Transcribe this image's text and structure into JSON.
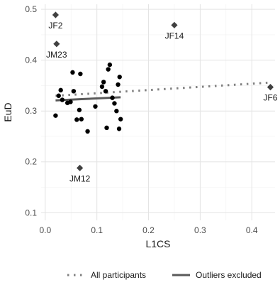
{
  "chart_data": {
    "type": "scatter",
    "xlabel": "L1CS",
    "ylabel": "EuD",
    "xlim": [
      -0.008,
      0.445
    ],
    "ylim": [
      0.085,
      0.51
    ],
    "x_ticks": [
      "0.0",
      "0.1",
      "0.2",
      "0.3",
      "0.4"
    ],
    "x_tick_values": [
      0.0,
      0.1,
      0.2,
      0.3,
      0.4
    ],
    "y_ticks": [
      "0.1",
      "0.2",
      "0.3",
      "0.4",
      "0.5"
    ],
    "y_tick_values": [
      0.1,
      0.2,
      0.3,
      0.4,
      0.5
    ],
    "grid": true,
    "legend_position": "bottom",
    "points": [
      {
        "x": 0.02,
        "y": 0.291
      },
      {
        "x": 0.026,
        "y": 0.33
      },
      {
        "x": 0.03,
        "y": 0.341
      },
      {
        "x": 0.033,
        "y": 0.322
      },
      {
        "x": 0.043,
        "y": 0.316
      },
      {
        "x": 0.049,
        "y": 0.318
      },
      {
        "x": 0.053,
        "y": 0.376
      },
      {
        "x": 0.055,
        "y": 0.339
      },
      {
        "x": 0.061,
        "y": 0.283
      },
      {
        "x": 0.066,
        "y": 0.302
      },
      {
        "x": 0.068,
        "y": 0.373
      },
      {
        "x": 0.07,
        "y": 0.284
      },
      {
        "x": 0.082,
        "y": 0.26
      },
      {
        "x": 0.097,
        "y": 0.309
      },
      {
        "x": 0.11,
        "y": 0.348
      },
      {
        "x": 0.113,
        "y": 0.357
      },
      {
        "x": 0.117,
        "y": 0.339
      },
      {
        "x": 0.119,
        "y": 0.267
      },
      {
        "x": 0.122,
        "y": 0.382
      },
      {
        "x": 0.125,
        "y": 0.391
      },
      {
        "x": 0.13,
        "y": 0.326
      },
      {
        "x": 0.134,
        "y": 0.315
      },
      {
        "x": 0.138,
        "y": 0.3
      },
      {
        "x": 0.141,
        "y": 0.352
      },
      {
        "x": 0.144,
        "y": 0.367
      },
      {
        "x": 0.143,
        "y": 0.265
      },
      {
        "x": 0.146,
        "y": 0.284
      }
    ],
    "outliers": [
      {
        "label": "JF2",
        "x": 0.02,
        "y": 0.489
      },
      {
        "label": "JM23",
        "x": 0.022,
        "y": 0.432
      },
      {
        "label": "JF14",
        "x": 0.25,
        "y": 0.469
      },
      {
        "label": "JF6",
        "x": 0.436,
        "y": 0.347
      },
      {
        "label": "JM12",
        "x": 0.067,
        "y": 0.188
      }
    ],
    "series": [
      {
        "name": "All participants",
        "style": "dotted",
        "color": "#808080",
        "x": [
          0.02,
          0.436
        ],
        "y": [
          0.33,
          0.356
        ]
      },
      {
        "name": "Outliers excluded",
        "style": "solid",
        "color": "#5a5a5a",
        "x": [
          0.02,
          0.146
        ],
        "y": [
          0.321,
          0.327
        ]
      }
    ],
    "colors": {
      "points": "#000000",
      "outliers": "#404040",
      "grid_major": "#e3e3e3",
      "grid_minor": "#f1f1f1"
    }
  }
}
